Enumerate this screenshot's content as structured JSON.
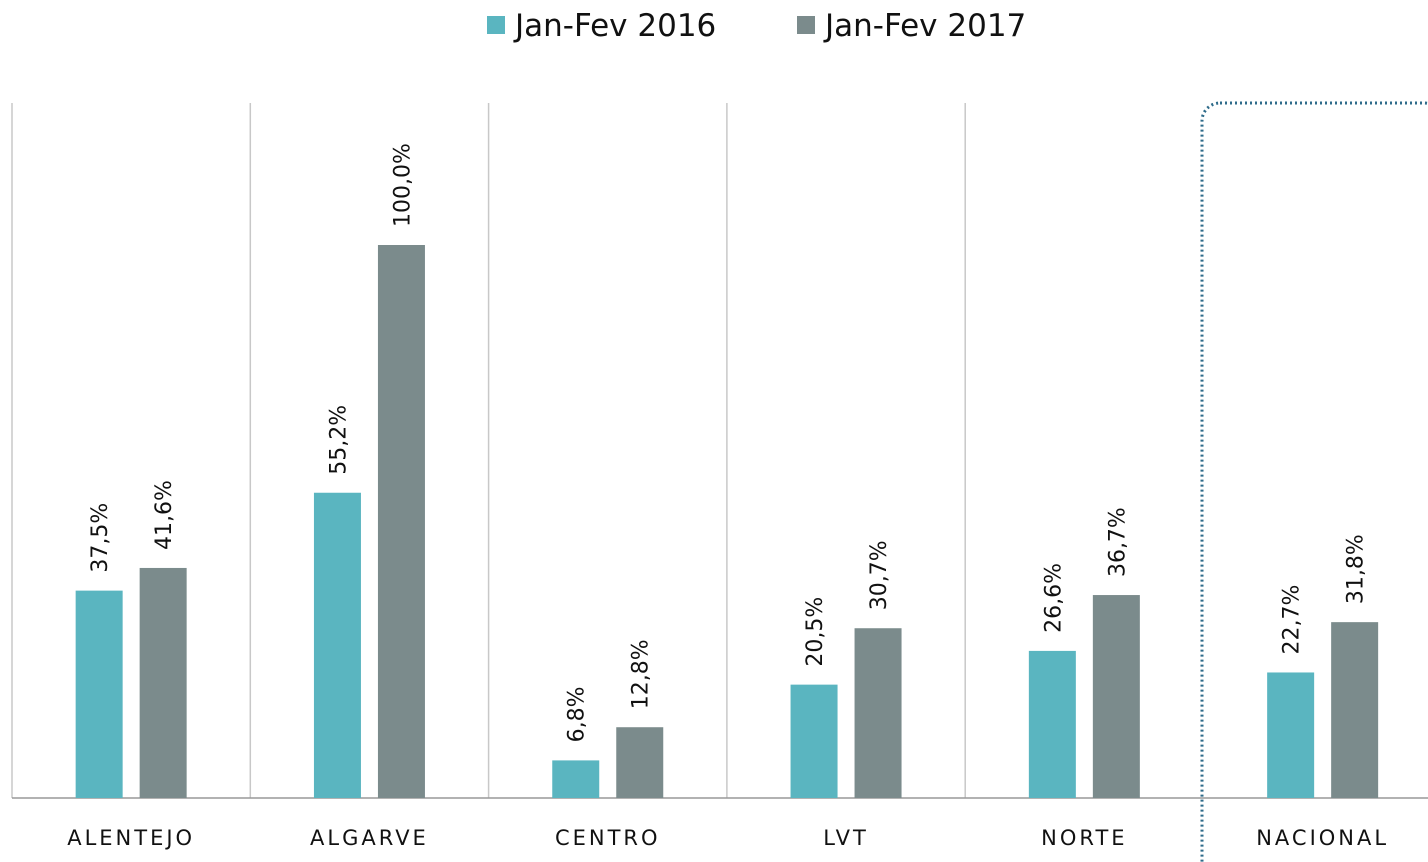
{
  "chart_data": {
    "type": "bar",
    "categories": [
      "ALENTEJO",
      "ALGARVE",
      "CENTRO",
      "LVT",
      "NORTE",
      "NACIONAL"
    ],
    "series": [
      {
        "name": "Jan-Fev 2016",
        "color": "#5ab5c0",
        "values": [
          37.5,
          55.2,
          6.8,
          20.5,
          26.6,
          22.7
        ],
        "value_labels": [
          "37,5%",
          "55,2%",
          "6,8%",
          "20,5%",
          "26,6%",
          "22,7%"
        ]
      },
      {
        "name": "Jan-Fev 2017",
        "color": "#7b8b8c",
        "values": [
          41.6,
          100.0,
          12.8,
          30.7,
          36.7,
          31.8
        ],
        "value_labels": [
          "41,6%",
          "100,0%",
          "12,8%",
          "30,7%",
          "36,7%",
          "31,8%"
        ]
      }
    ],
    "legend": "top"
  }
}
